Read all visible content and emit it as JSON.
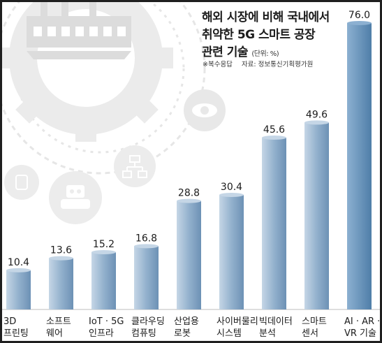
{
  "chart_data": {
    "type": "bar",
    "title_lines": [
      "해외 시장에 비해 국내에서",
      "취약한 5G 스마트 공장",
      "관련 기술"
    ],
    "unit": "(단위: %)",
    "notes": [
      "※복수응답",
      "자료: 정보통신기획평가원"
    ],
    "categories": [
      [
        "3D",
        "프린팅"
      ],
      [
        "소프트",
        "웨어"
      ],
      [
        "IoT · 5G",
        "인프라"
      ],
      [
        "클라우딩",
        "컴퓨팅"
      ],
      [
        "산업용",
        "로봇"
      ],
      [
        "사이버물리",
        "시스템"
      ],
      [
        "빅데이터",
        "분석"
      ],
      [
        "스마트",
        "센서"
      ],
      [
        "AI · AR ·",
        "VR 기술"
      ]
    ],
    "values": [
      10.4,
      13.6,
      15.2,
      16.8,
      28.8,
      30.4,
      45.6,
      49.6,
      76.0
    ],
    "value_labels": [
      "10.4",
      "13.6",
      "15.2",
      "16.8",
      "28.8",
      "30.4",
      "45.6",
      "49.6",
      "76.0"
    ],
    "ylim": [
      0,
      76
    ],
    "colors": {
      "bar_light": "#c5d6e6",
      "bar_mid": "#93b1cd",
      "bar_dark": "#6d91b5",
      "highlight_light": "#8cb0d1",
      "highlight_dark": "#4f7ea8",
      "text": "#1b1b1b",
      "decoration": "#ececec"
    },
    "icons": [
      "factory-icon",
      "gear-icon",
      "eye-icon",
      "network-icon",
      "smartwatch-icon",
      "robot-icon"
    ]
  }
}
